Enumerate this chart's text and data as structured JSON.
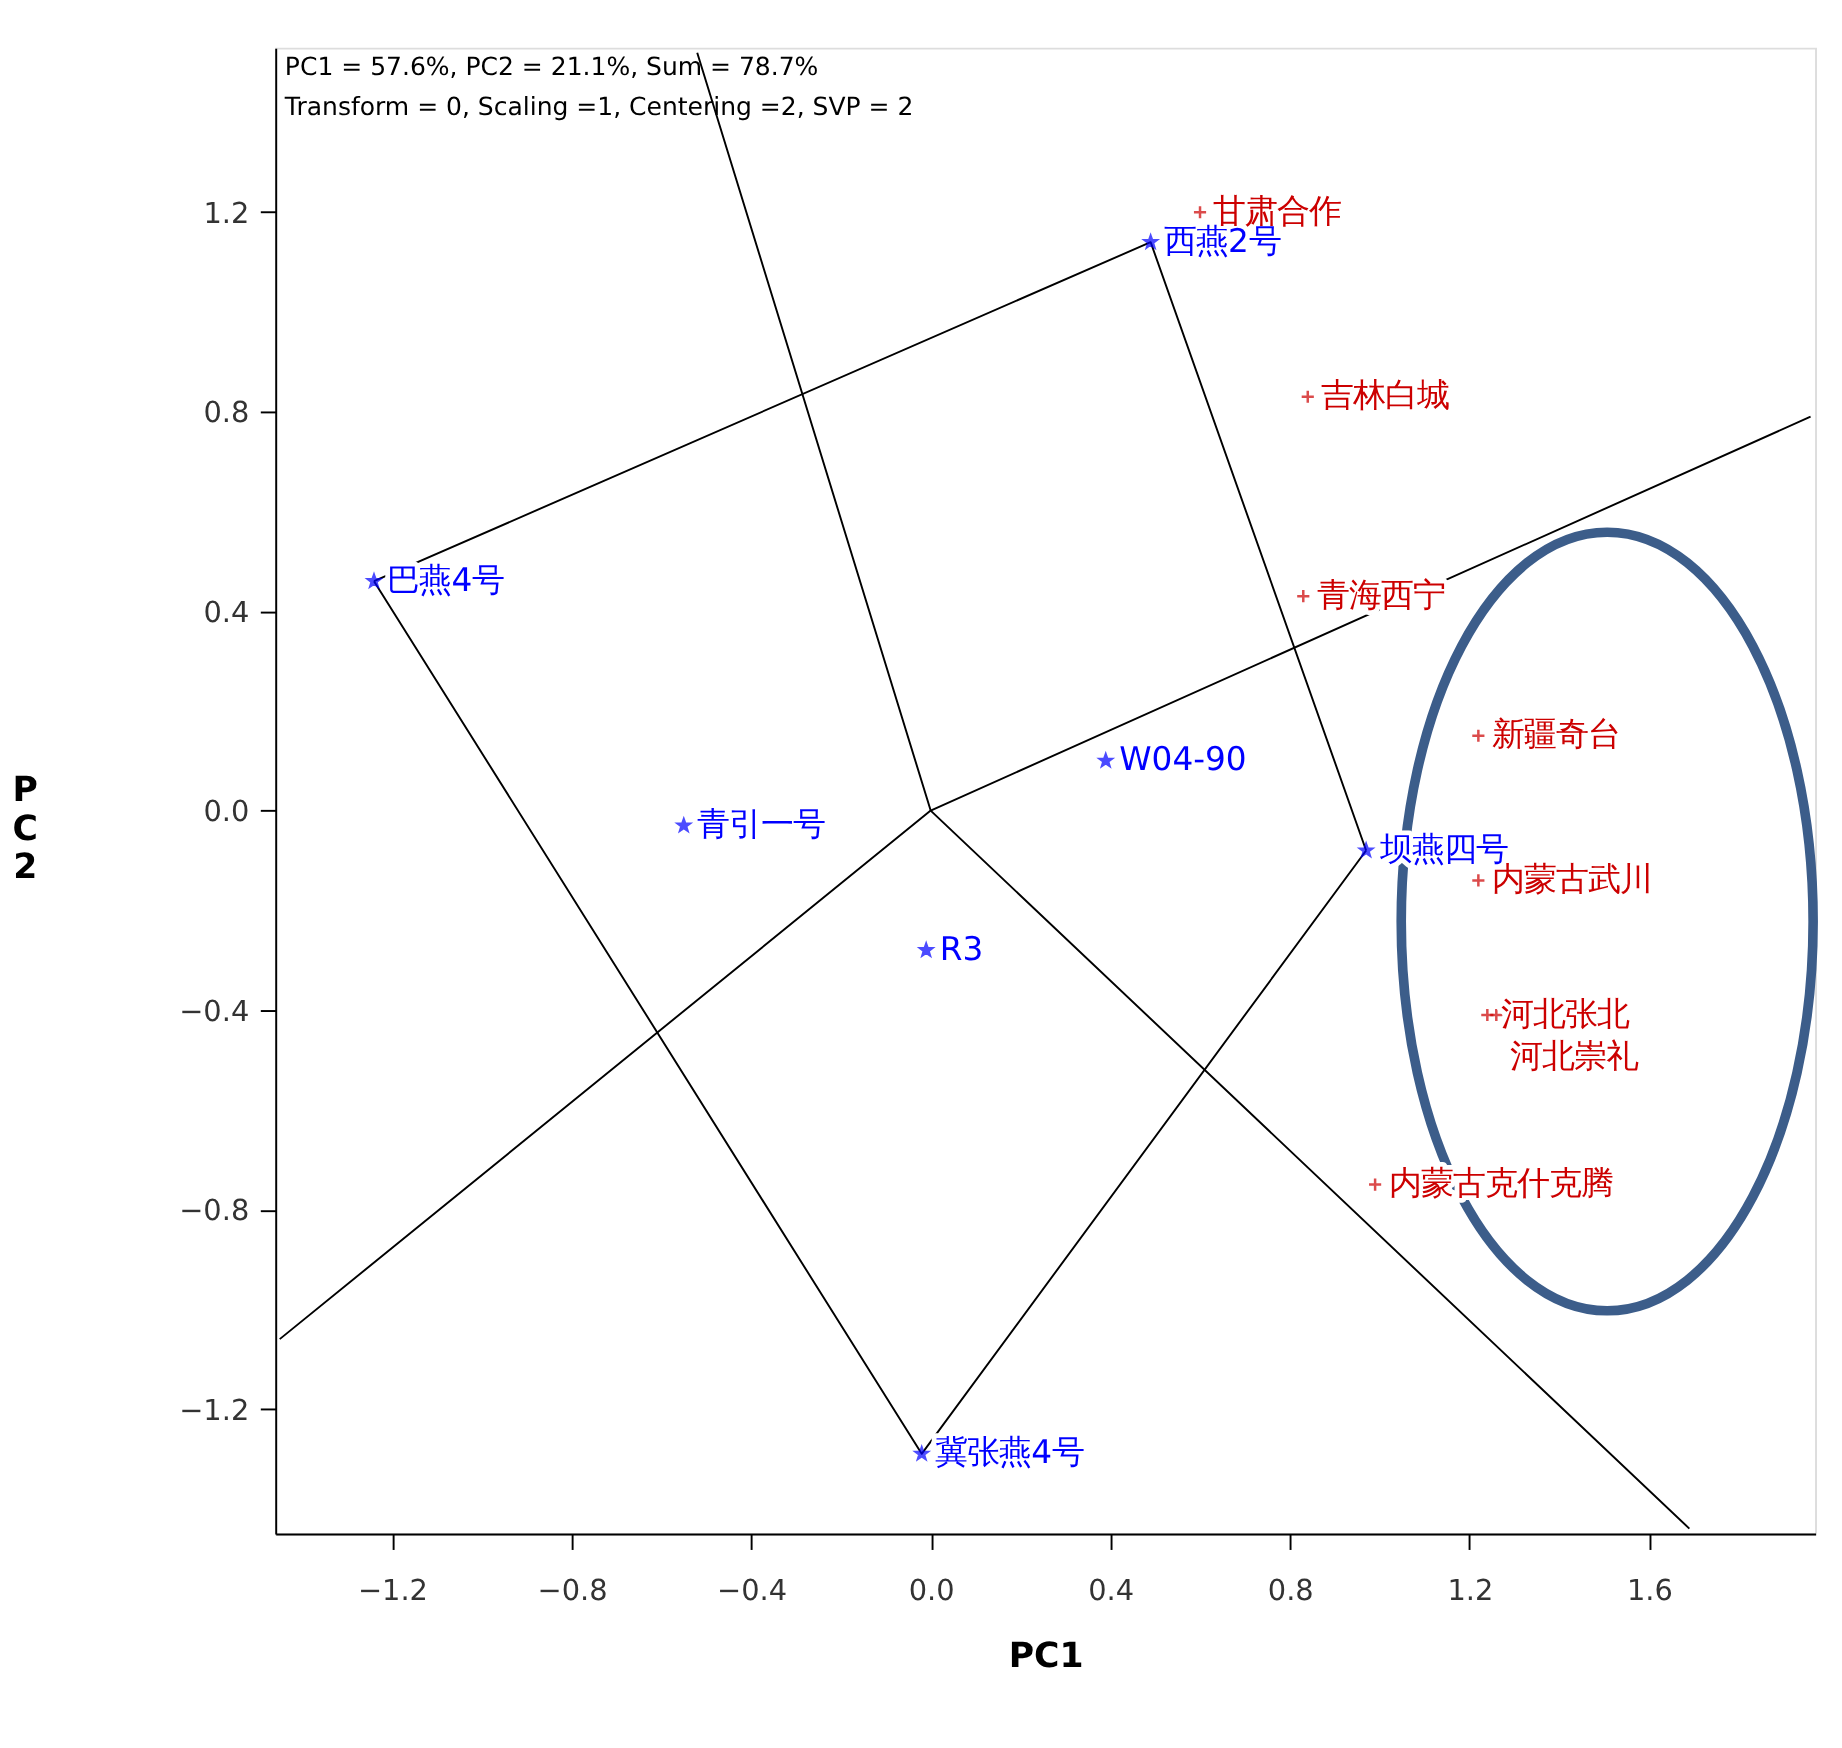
{
  "chart_data": {
    "type": "scatter",
    "xlabel": "PC1",
    "ylabel": "PC2",
    "annotations": [
      "PC1 = 57.6%, PC2 = 21.1%, Sum = 78.7%",
      "Transform = 0, Scaling =1, Centering =2, SVP = 2",
      {
        "text": "巴燕4号",
        "x": -1.24,
        "y": 0.46
      },
      {
        "text": "西燕2号",
        "x": 0.49,
        "y": 1.14
      },
      {
        "text": "坝燕四号",
        "x": 0.97,
        "y": -0.08
      },
      {
        "text": "冀张燕4号",
        "x": -0.02,
        "y": -1.29
      },
      {
        "text": "青引一号",
        "x": -0.55,
        "y": -0.03
      },
      {
        "text": "R3",
        "x": -0.01,
        "y": -0.28
      },
      {
        "text": "W04-90",
        "x": 0.39,
        "y": 0.1
      },
      {
        "text": "甘肃合作",
        "x": 0.6,
        "y": 1.2
      },
      {
        "text": "吉林白城",
        "x": 0.84,
        "y": 0.83
      },
      {
        "text": "青海西宁",
        "x": 0.83,
        "y": 0.43
      },
      {
        "text": "新疆奇台",
        "x": 1.22,
        "y": 0.15
      },
      {
        "text": "内蒙古武川",
        "x": 1.22,
        "y": -0.14
      },
      {
        "text": "河北张北",
        "x": 1.24,
        "y": -0.41
      },
      {
        "text": "河北崇礼",
        "x": 1.26,
        "y": -0.41
      },
      {
        "text": "内蒙古克什克腾",
        "x": 0.99,
        "y": -0.75
      }
    ],
    "series": [
      {
        "type": "line",
        "color": "#000000",
        "x": [
          -1.24,
          0.49,
          0.97
        ],
        "values": [
          0.46,
          1.14,
          -0.08
        ]
      },
      {
        "type": "line",
        "color": "#000000",
        "x": [
          -1.24,
          -0.02,
          0.97
        ],
        "values": [
          0.46,
          -1.29,
          -0.08
        ]
      },
      {
        "type": "line",
        "color": "#000000",
        "x": [
          -0.52,
          0,
          1.69
        ],
        "values": [
          1.52,
          0,
          -1.44
        ]
      },
      {
        "type": "line",
        "color": "#000000",
        "x": [
          -1.45,
          0,
          1.96
        ],
        "values": [
          -1.06,
          0,
          0.79
        ]
      },
      {
        "marker": "star",
        "color": "#0000ff",
        "x": [
          -1.24,
          0.49,
          0.97,
          -0.02,
          -0.55,
          -0.01,
          0.39
        ],
        "values": [
          0.46,
          1.14,
          -0.08,
          -1.29,
          -0.03,
          -0.28,
          0.1
        ]
      },
      {
        "marker": "cross",
        "color": "#cc0000",
        "x": [
          0.6,
          0.84,
          0.83,
          1.22,
          1.22,
          1.24,
          1.26,
          0.99
        ],
        "values": [
          1.2,
          0.83,
          0.43,
          0.15,
          -0.14,
          -0.41,
          -0.41,
          -0.75
        ]
      }
    ],
    "xlim": [
      -1.46,
      1.97
    ],
    "ylim": [
      -1.45,
      1.53
    ],
    "xticks": [
      -1.2,
      -0.8,
      -0.4,
      {
        "value": 0,
        "label": "0.0"
      },
      0.4,
      0.8,
      1.2,
      1.6
    ],
    "yticks": [
      -1.2,
      -0.8,
      -0.4,
      {
        "value": 0,
        "label": "0.0"
      },
      0.4,
      0.8,
      1.2
    ],
    "grid": false
  }
}
